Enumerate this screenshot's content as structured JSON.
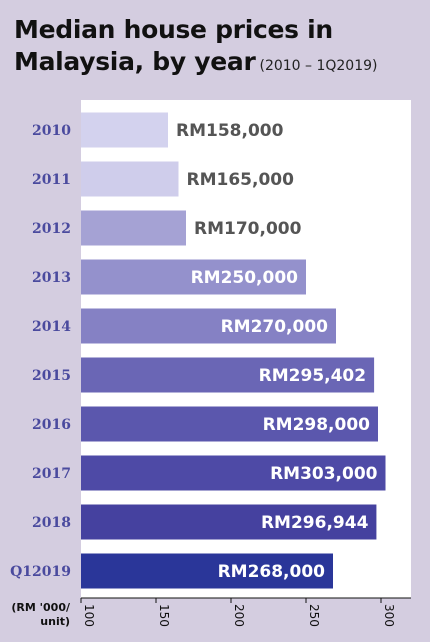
{
  "title": {
    "line1": "Median house prices in",
    "line2": "Malaysia, by year",
    "subtitle": "(2010 – 1Q2019)"
  },
  "colors": {
    "background": "#d4cde0",
    "plot_area": "#ffffff",
    "category_text": "#4a4a9e",
    "bars": [
      "#d3d2ee",
      "#cfcdeb",
      "#a5a2d4",
      "#9491cc",
      "#8581c4",
      "#6a66b5",
      "#5b57ad",
      "#4e4aa6",
      "#45419f",
      "#2a3699"
    ],
    "value_text_outside": "#555555",
    "value_text_inside": "#ffffff"
  },
  "chart_data": {
    "type": "bar",
    "orientation": "horizontal",
    "categories": [
      "2010",
      "2011",
      "2012",
      "2013",
      "2014",
      "2015",
      "2016",
      "2017",
      "2018",
      "Q12019"
    ],
    "values": [
      158000,
      165000,
      170000,
      250000,
      270000,
      295402,
      298000,
      303000,
      296944,
      268000
    ],
    "value_labels": [
      "RM158,000",
      "RM165,000",
      "RM170,000",
      "RM250,000",
      "RM270,000",
      "RM295,402",
      "RM298,000",
      "RM303,000",
      "RM296,944",
      "RM268,000"
    ],
    "xlim": [
      100,
      320
    ],
    "x_unit_scale": 1000,
    "xticks": [
      100,
      150,
      200,
      250,
      300
    ],
    "xtick_labels": [
      "100",
      "150",
      "200",
      "250",
      "300"
    ],
    "xlabel_lines": [
      "(RM '000/",
      "unit)"
    ],
    "grid": false,
    "legend": false
  }
}
